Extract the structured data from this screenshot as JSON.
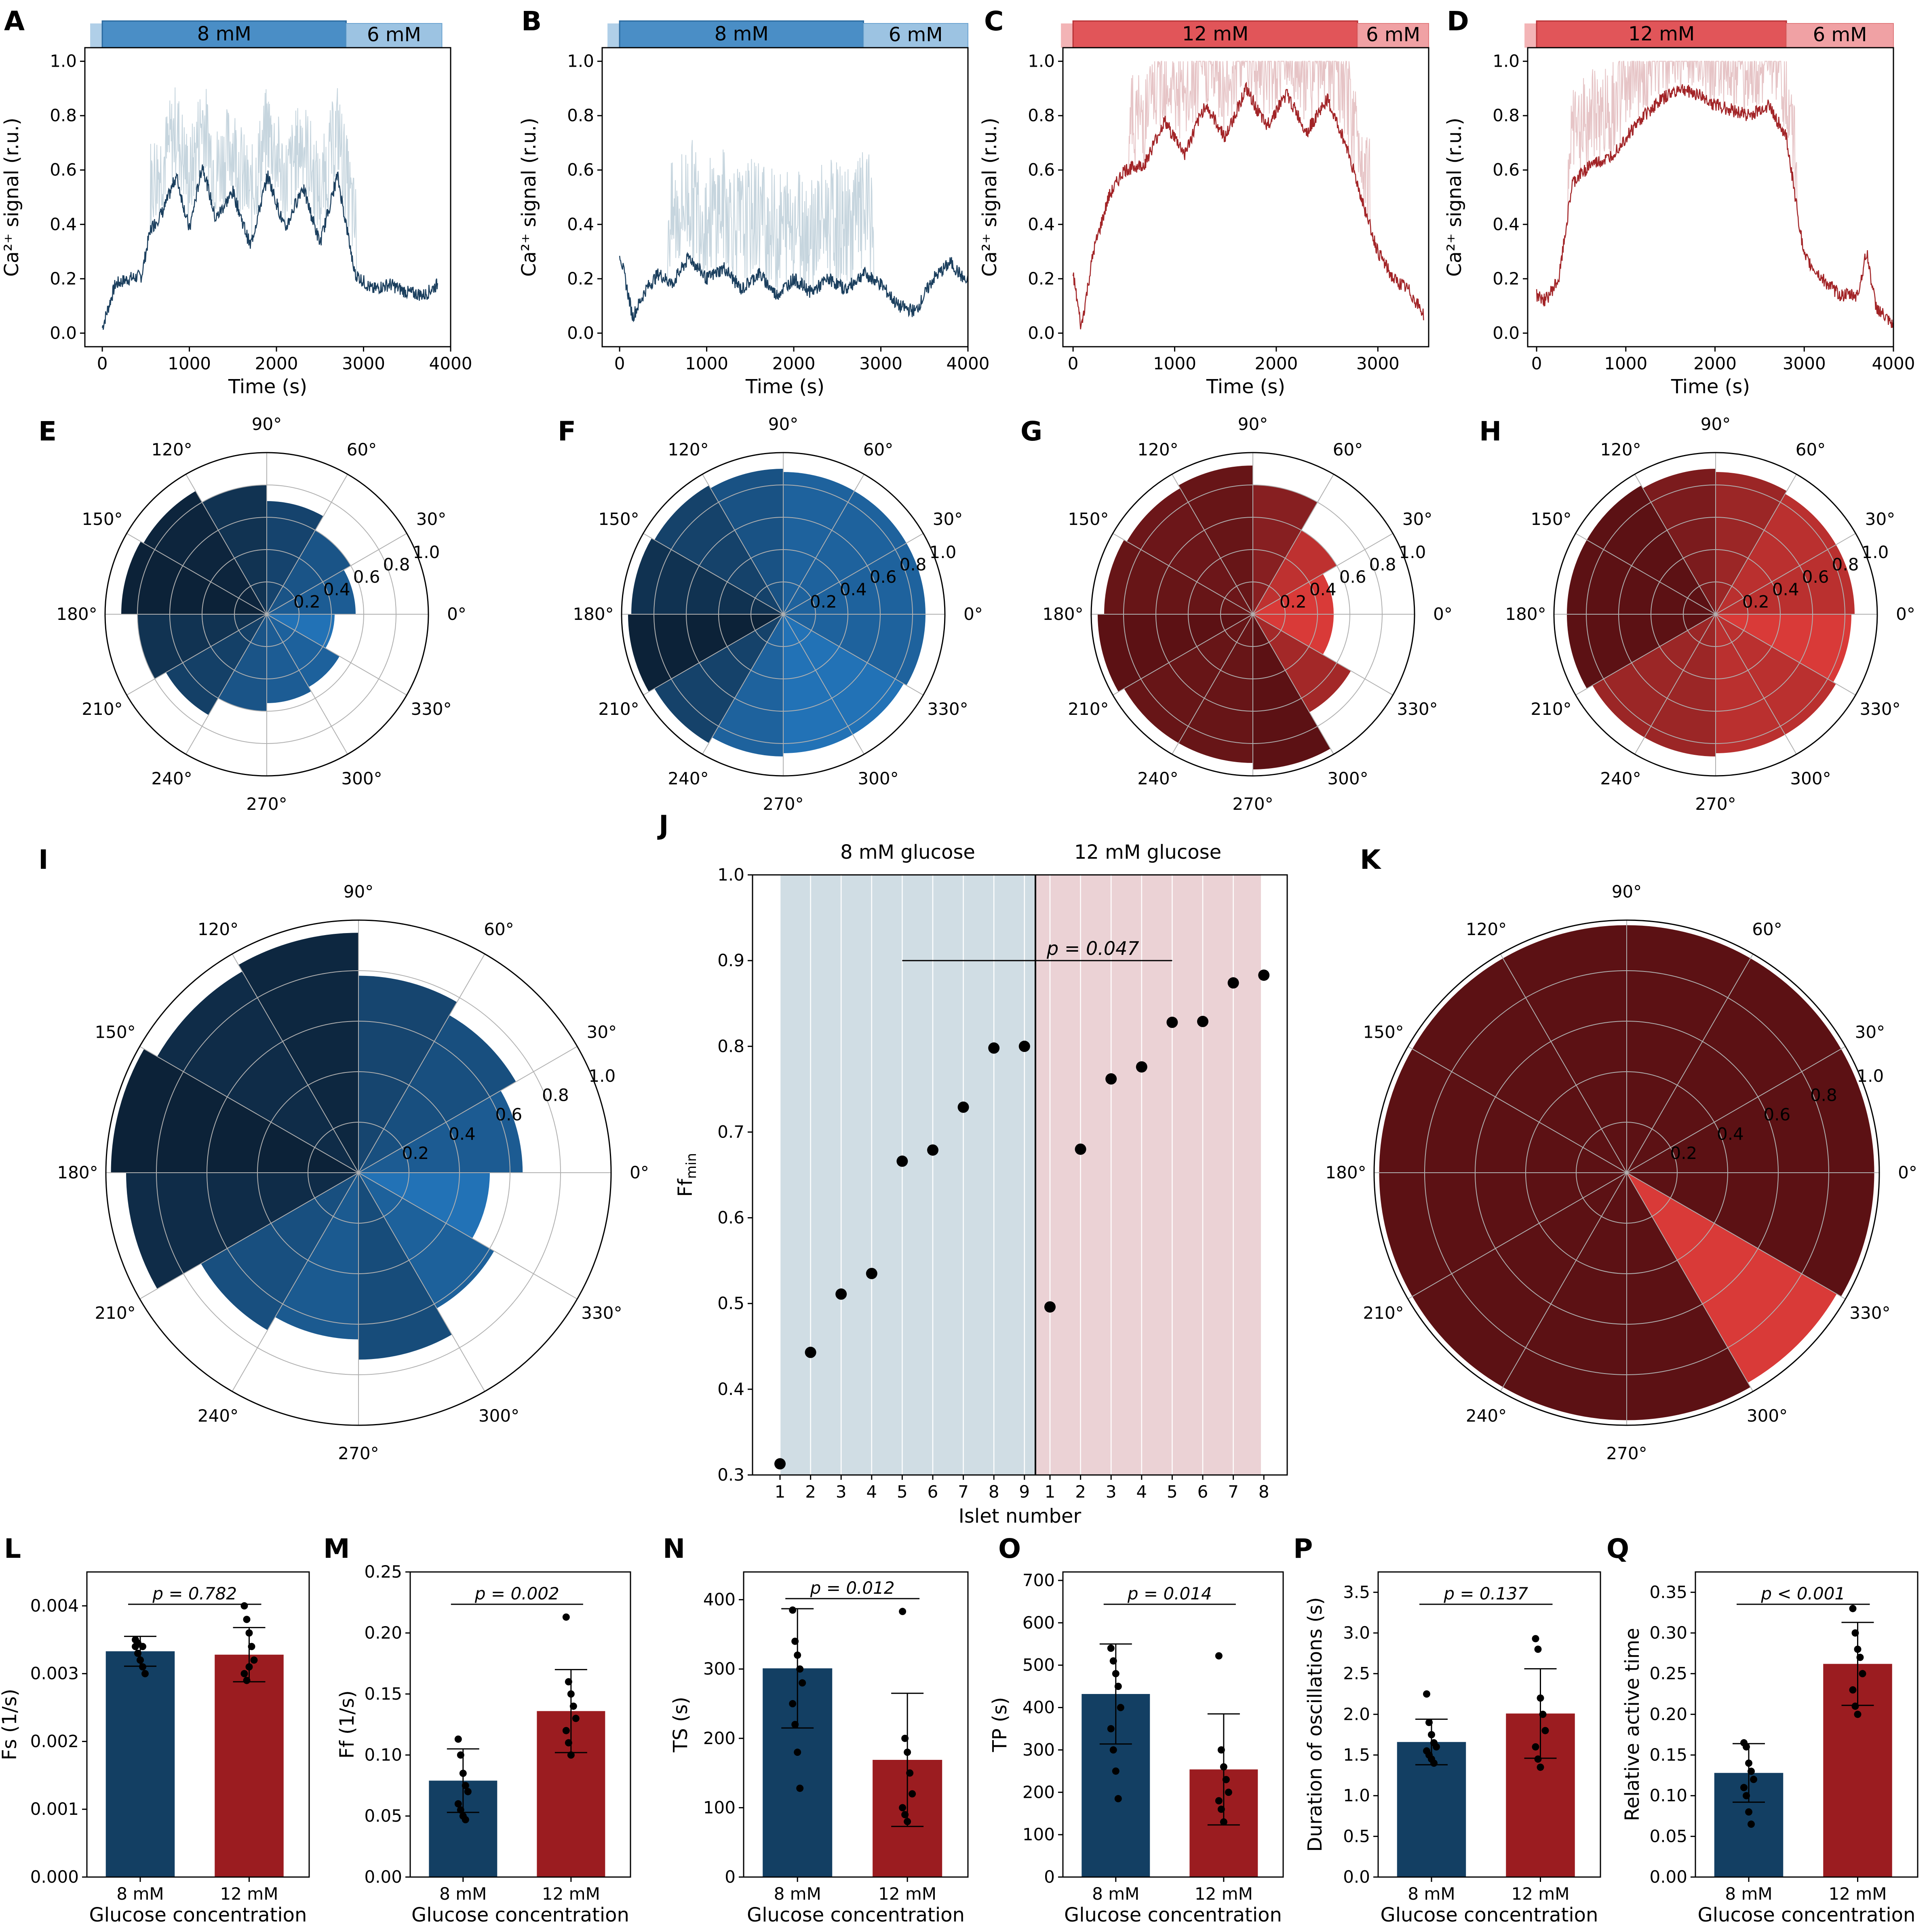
{
  "colors": {
    "blue_dark": "#0c2238",
    "blue_mid": "#12406a",
    "blue_bar": "#133f63",
    "blue_light": "#2272b6",
    "blue_band": "#4a8ec6",
    "blue_band_light": "#9cc3e2",
    "red_dark": "#5c1114",
    "red_mid": "#8f1b1f",
    "red_bar": "#9b1c20",
    "red_light": "#d93a38",
    "red_band": "#e15559",
    "red_band_light": "#f0a1a4",
    "trace_blue": "#1b3f5e",
    "trace_blue_light": "#c6d5de",
    "trace_red": "#a22427",
    "trace_red_light": "#e6c4c6",
    "shade_blue": "#d0dde4",
    "shade_red": "#ebd2d5"
  },
  "panel_letters": [
    "A",
    "B",
    "C",
    "D",
    "E",
    "F",
    "G",
    "H",
    "I",
    "J",
    "K",
    "L",
    "M",
    "N",
    "O",
    "P",
    "Q"
  ],
  "traces": {
    "ylabel": "Ca²⁺ signal (r.u.)",
    "xlabel": "Time (s)",
    "yticks": [
      "0.0",
      "0.2",
      "0.4",
      "0.6",
      "0.8",
      "1.0"
    ],
    "xticks": [
      "0",
      "1000",
      "2000",
      "3000",
      "4000"
    ],
    "band_labels": {
      "A": [
        "8 mM",
        "6 mM"
      ],
      "B": [
        "8 mM",
        "6 mM"
      ],
      "C": [
        "12 mM",
        "6 mM"
      ],
      "D": [
        "12 mM",
        "6 mM"
      ]
    }
  },
  "polar": {
    "angle_labels": [
      "0°",
      "30°",
      "60°",
      "90°",
      "120°",
      "150°",
      "180°",
      "210°",
      "240°",
      "270°",
      "300°",
      "330°"
    ],
    "radial_labels": [
      "0.2",
      "0.4",
      "0.6",
      "0.8",
      "1.0"
    ]
  },
  "chart_data": [
    {
      "panel": "A",
      "type": "line",
      "title": "",
      "xlabel": "Time (s)",
      "ylabel": "Ca2+ signal (r.u.)",
      "xlim": [
        -200,
        4000
      ],
      "ylim": [
        -0.05,
        1.05
      ],
      "stimulus": [
        {
          "label": "8 mM",
          "from": 0,
          "to": 2800
        },
        {
          "label": "6 mM",
          "from": 2800,
          "to": 3900
        }
      ],
      "series": [
        {
          "name": "trace",
          "x": [
            0,
            150,
            300,
            450,
            550,
            700,
            850,
            1000,
            1150,
            1300,
            1500,
            1700,
            1900,
            2100,
            2300,
            2500,
            2700,
            2900,
            3100,
            3300,
            3500,
            3700,
            3850
          ],
          "y": [
            0.02,
            0.18,
            0.2,
            0.21,
            0.38,
            0.45,
            0.58,
            0.38,
            0.62,
            0.42,
            0.52,
            0.32,
            0.58,
            0.38,
            0.54,
            0.33,
            0.58,
            0.22,
            0.16,
            0.18,
            0.15,
            0.14,
            0.18
          ]
        }
      ]
    },
    {
      "panel": "B",
      "type": "line",
      "xlabel": "Time (s)",
      "ylabel": "Ca2+ signal (r.u.)",
      "xlim": [
        -200,
        4000
      ],
      "ylim": [
        -0.05,
        1.05
      ],
      "stimulus": [
        {
          "label": "8 mM",
          "from": 0,
          "to": 2800
        },
        {
          "label": "6 mM",
          "from": 2800,
          "to": 4000
        }
      ],
      "series": [
        {
          "name": "trace",
          "x": [
            0,
            150,
            300,
            450,
            600,
            800,
            1000,
            1200,
            1400,
            1600,
            1800,
            2000,
            2200,
            2400,
            2600,
            2800,
            3000,
            3200,
            3400,
            3600,
            3800,
            4000
          ],
          "y": [
            0.3,
            0.06,
            0.16,
            0.22,
            0.18,
            0.28,
            0.2,
            0.24,
            0.16,
            0.22,
            0.14,
            0.2,
            0.15,
            0.2,
            0.16,
            0.22,
            0.18,
            0.1,
            0.08,
            0.2,
            0.26,
            0.18
          ]
        }
      ]
    },
    {
      "panel": "C",
      "type": "line",
      "xlabel": "Time (s)",
      "ylabel": "Ca2+ signal (r.u.)",
      "xlim": [
        -100,
        3500
      ],
      "ylim": [
        -0.05,
        1.05
      ],
      "stimulus": [
        {
          "label": "12 mM",
          "from": 0,
          "to": 2800
        },
        {
          "label": "6 mM",
          "from": 2800,
          "to": 3500
        }
      ],
      "series": [
        {
          "name": "trace",
          "x": [
            0,
            80,
            200,
            350,
            500,
            700,
            900,
            1100,
            1300,
            1500,
            1700,
            1900,
            2100,
            2300,
            2500,
            2700,
            2850,
            3000,
            3150,
            3300,
            3450
          ],
          "y": [
            0.22,
            0.02,
            0.3,
            0.5,
            0.6,
            0.62,
            0.78,
            0.66,
            0.84,
            0.72,
            0.9,
            0.76,
            0.88,
            0.74,
            0.86,
            0.68,
            0.48,
            0.3,
            0.2,
            0.16,
            0.07
          ]
        }
      ]
    },
    {
      "panel": "D",
      "type": "line",
      "xlabel": "Time (s)",
      "ylabel": "Ca2+ signal (r.u.)",
      "xlim": [
        -100,
        4000
      ],
      "ylim": [
        -0.05,
        1.05
      ],
      "stimulus": [
        {
          "label": "12 mM",
          "from": 0,
          "to": 2800
        },
        {
          "label": "6 mM",
          "from": 2800,
          "to": 4000
        }
      ],
      "series": [
        {
          "name": "trace",
          "x": [
            0,
            100,
            250,
            400,
            600,
            800,
            1000,
            1200,
            1400,
            1600,
            1800,
            2000,
            2200,
            2400,
            2600,
            2800,
            3000,
            3200,
            3400,
            3600,
            3700,
            3800,
            4000
          ],
          "y": [
            0.14,
            0.12,
            0.2,
            0.55,
            0.62,
            0.64,
            0.72,
            0.8,
            0.86,
            0.9,
            0.88,
            0.84,
            0.82,
            0.8,
            0.84,
            0.72,
            0.28,
            0.2,
            0.14,
            0.14,
            0.3,
            0.1,
            0.02
          ]
        }
      ]
    },
    {
      "panel": "E",
      "type": "polar_bar",
      "rmax": 1.0,
      "sectors_deg": [
        0,
        30,
        60,
        90,
        120,
        150,
        180,
        210,
        240,
        270,
        300,
        330
      ],
      "values": [
        0.55,
        0.6,
        0.7,
        0.8,
        0.88,
        0.9,
        0.8,
        0.72,
        0.6,
        0.55,
        0.52,
        0.42
      ]
    },
    {
      "panel": "F",
      "type": "polar_bar",
      "rmax": 1.0,
      "sectors_deg": [
        0,
        30,
        60,
        90,
        120,
        150,
        180,
        210,
        240,
        270,
        300,
        330
      ],
      "values": [
        0.88,
        0.88,
        0.88,
        0.9,
        0.92,
        0.94,
        0.96,
        0.92,
        0.88,
        0.86,
        0.86,
        0.88
      ]
    },
    {
      "panel": "G",
      "type": "polar_bar",
      "rmax": 1.0,
      "sectors_deg": [
        0,
        30,
        60,
        90,
        120,
        150,
        180,
        210,
        240,
        270,
        300,
        330
      ],
      "values": [
        0.5,
        0.6,
        0.8,
        0.92,
        0.9,
        0.92,
        0.96,
        0.92,
        0.92,
        0.96,
        0.7,
        0.5
      ]
    },
    {
      "panel": "H",
      "type": "polar_bar",
      "rmax": 1.0,
      "sectors_deg": [
        0,
        30,
        60,
        90,
        120,
        150,
        180,
        210,
        240,
        270,
        300,
        330
      ],
      "values": [
        0.86,
        0.86,
        0.88,
        0.9,
        0.92,
        0.92,
        0.92,
        0.88,
        0.88,
        0.86,
        0.86,
        0.84
      ]
    },
    {
      "panel": "I",
      "type": "polar_bar",
      "rmax": 1.0,
      "sectors_deg": [
        0,
        30,
        60,
        90,
        120,
        150,
        180,
        210,
        240,
        270,
        300,
        330
      ],
      "values": [
        0.65,
        0.72,
        0.78,
        0.95,
        0.92,
        0.98,
        0.92,
        0.72,
        0.66,
        0.74,
        0.62,
        0.52
      ]
    },
    {
      "panel": "J",
      "type": "scatter",
      "xlabel": "Islet number",
      "ylabel": "Ff_min",
      "ylim": [
        0.3,
        1.0
      ],
      "yticks": [
        "0.3",
        "0.4",
        "0.5",
        "0.6",
        "0.7",
        "0.8",
        "0.9",
        "1.0"
      ],
      "group_labels": [
        "8 mM glucose",
        "12 mM glucose"
      ],
      "p_value": "p = 0.047",
      "groups": [
        {
          "name": "8 mM glucose",
          "x": [
            1,
            2,
            3,
            4,
            5,
            6,
            7,
            8,
            9
          ],
          "y": [
            0.313,
            0.443,
            0.511,
            0.535,
            0.666,
            0.679,
            0.729,
            0.798,
            0.8
          ]
        },
        {
          "name": "12 mM glucose",
          "x": [
            1,
            2,
            3,
            4,
            5,
            6,
            7,
            8
          ],
          "y": [
            0.496,
            0.68,
            0.762,
            0.776,
            0.828,
            0.829,
            0.874,
            0.883
          ]
        }
      ]
    },
    {
      "panel": "K",
      "type": "polar_bar",
      "rmax": 1.0,
      "sectors_deg": [
        0,
        30,
        60,
        90,
        120,
        150,
        180,
        210,
        240,
        270,
        300,
        330
      ],
      "values": [
        0.98,
        0.98,
        0.98,
        0.98,
        0.98,
        0.98,
        0.98,
        0.98,
        0.98,
        0.98,
        0.96,
        0.98
      ]
    },
    {
      "panel": "L",
      "type": "bar",
      "xlabel": "Glucose concentration",
      "ylabel": "Fs (1/s)",
      "categories": [
        "8 mM",
        "12 mM"
      ],
      "values": [
        0.00333,
        0.00328
      ],
      "err": [
        0.00022,
        0.0004
      ],
      "ylim": [
        0,
        0.0045
      ],
      "yticks": [
        "0.000",
        "0.001",
        "0.002",
        "0.003",
        "0.004"
      ],
      "ytick_values": [
        0,
        0.001,
        0.002,
        0.003,
        0.004
      ],
      "p_value": "p = 0.782",
      "points": [
        [
          0.0034,
          0.0033,
          0.0032,
          0.0031,
          0.003,
          0.0035,
          0.00345,
          0.0032,
          0.0034
        ],
        [
          0.004,
          0.0038,
          0.0036,
          0.0034,
          0.0032,
          0.003,
          0.0029,
          0.0031
        ]
      ]
    },
    {
      "panel": "M",
      "type": "bar",
      "xlabel": "Glucose concentration",
      "ylabel": "Ff (1/s)",
      "categories": [
        "8 mM",
        "12 mM"
      ],
      "values": [
        0.079,
        0.136
      ],
      "err": [
        0.026,
        0.034
      ],
      "ylim": [
        0,
        0.25
      ],
      "yticks": [
        "0.00",
        "0.05",
        "0.10",
        "0.15",
        "0.20",
        "0.25"
      ],
      "ytick_values": [
        0,
        0.05,
        0.1,
        0.15,
        0.2,
        0.25
      ],
      "p_value": "p = 0.002",
      "points": [
        [
          0.113,
          0.1,
          0.085,
          0.075,
          0.07,
          0.06,
          0.055,
          0.05,
          0.047
        ],
        [
          0.213,
          0.16,
          0.15,
          0.14,
          0.13,
          0.12,
          0.11,
          0.1
        ]
      ]
    },
    {
      "panel": "N",
      "type": "bar",
      "xlabel": "Glucose concentration",
      "ylabel": "TS (s)",
      "categories": [
        "8 mM",
        "12 mM"
      ],
      "values": [
        301,
        169
      ],
      "err": [
        86,
        96
      ],
      "ylim": [
        0,
        440
      ],
      "yticks": [
        "0",
        "100",
        "200",
        "300",
        "400"
      ],
      "ytick_values": [
        0,
        100,
        200,
        300,
        400
      ],
      "p_value": "p = 0.012",
      "points": [
        [
          385,
          340,
          320,
          300,
          280,
          250,
          220,
          180,
          128
        ],
        [
          383,
          200,
          180,
          150,
          120,
          100,
          90,
          80
        ]
      ]
    },
    {
      "panel": "O",
      "type": "bar",
      "xlabel": "Glucose concentration",
      "ylabel": "TP (s)",
      "categories": [
        "8 mM",
        "12 mM"
      ],
      "values": [
        432,
        254
      ],
      "err": [
        118,
        131
      ],
      "ylim": [
        0,
        720
      ],
      "yticks": [
        "0",
        "100",
        "200",
        "300",
        "400",
        "500",
        "600",
        "700"
      ],
      "ytick_values": [
        0,
        100,
        200,
        300,
        400,
        500,
        600,
        700
      ],
      "p_value": "p = 0.014",
      "points": [
        [
          540,
          510,
          480,
          450,
          400,
          350,
          300,
          250,
          185
        ],
        [
          522,
          300,
          260,
          230,
          200,
          180,
          160,
          130
        ]
      ]
    },
    {
      "panel": "P",
      "type": "bar",
      "xlabel": "Glucose concentration",
      "ylabel": "Duration of oscillations (s)",
      "categories": [
        "8 mM",
        "12 mM"
      ],
      "values": [
        1.66,
        2.01
      ],
      "err": [
        0.28,
        0.55
      ],
      "ylim": [
        0,
        3.75
      ],
      "yticks": [
        "0.0",
        "0.5",
        "1.0",
        "1.5",
        "2.0",
        "2.5",
        "3.0",
        "3.5"
      ],
      "ytick_values": [
        0,
        0.5,
        1,
        1.5,
        2,
        2.5,
        3,
        3.5
      ],
      "p_value": "p = 0.137",
      "points": [
        [
          2.25,
          1.9,
          1.75,
          1.65,
          1.6,
          1.55,
          1.5,
          1.45,
          1.4
        ],
        [
          2.93,
          2.8,
          2.2,
          2.0,
          1.8,
          1.6,
          1.45,
          1.35
        ]
      ]
    },
    {
      "panel": "Q",
      "type": "bar",
      "xlabel": "Glucose concentration",
      "ylabel": "Relative active time",
      "categories": [
        "8 mM",
        "12 mM"
      ],
      "values": [
        0.128,
        0.262
      ],
      "err": [
        0.036,
        0.051
      ],
      "ylim": [
        0,
        0.375
      ],
      "yticks": [
        "0.00",
        "0.05",
        "0.10",
        "0.15",
        "0.20",
        "0.25",
        "0.30",
        "0.35"
      ],
      "ytick_values": [
        0,
        0.05,
        0.1,
        0.15,
        0.2,
        0.25,
        0.3,
        0.35
      ],
      "p_value": "p < 0.001",
      "points": [
        [
          0.165,
          0.16,
          0.14,
          0.13,
          0.12,
          0.11,
          0.1,
          0.08,
          0.065
        ],
        [
          0.33,
          0.3,
          0.28,
          0.27,
          0.25,
          0.23,
          0.21,
          0.2
        ]
      ]
    }
  ]
}
